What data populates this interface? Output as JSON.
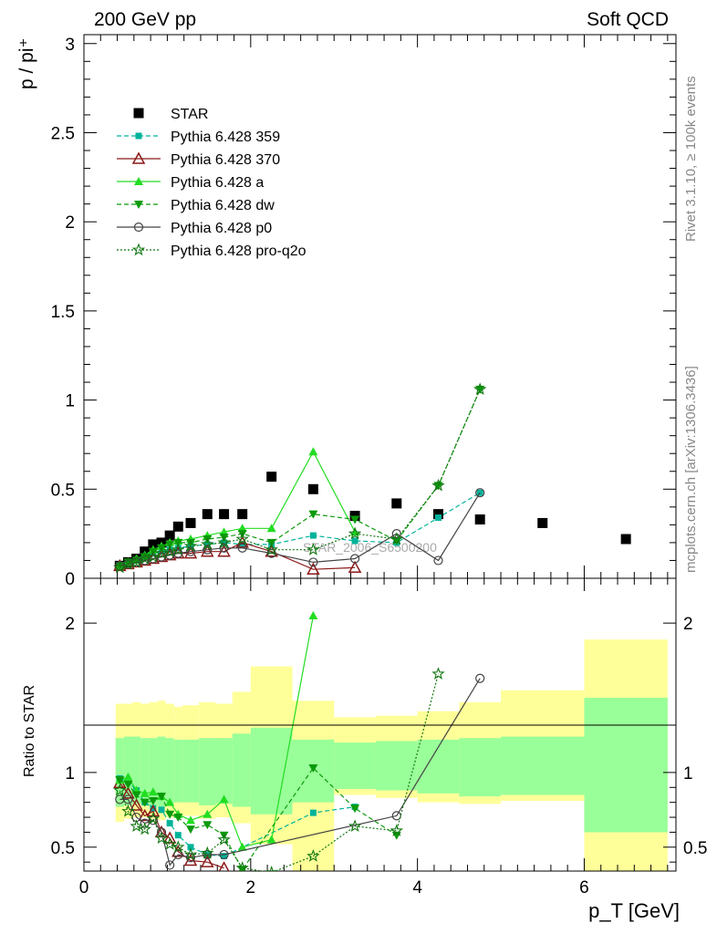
{
  "header": {
    "left": "200 GeV pp",
    "right": "Soft QCD",
    "side_top": "Rivet 3.1.10, ≥ 100k events",
    "side_bottom": "mcplots.cern.ch [arXiv:1306.3436]",
    "watermark": "STAR_2006_S6500200"
  },
  "chart_data": [
    {
      "type": "scatter",
      "panel": "main",
      "ylabel": "p / pi⁺",
      "xlim": [
        0,
        7.1
      ],
      "ylim": [
        0,
        3.05
      ],
      "yticks": [
        "0",
        "0.5",
        "1",
        "1.5",
        "2",
        "2.5",
        "3"
      ],
      "legend": {
        "placement": "top-left"
      },
      "series": [
        {
          "name": "STAR",
          "color": "#000000",
          "marker": "square",
          "line": "none",
          "x": [
            0.43,
            0.53,
            0.63,
            0.73,
            0.83,
            0.93,
            1.03,
            1.13,
            1.28,
            1.48,
            1.68,
            1.9,
            2.25,
            2.75,
            3.25,
            3.75,
            4.25,
            4.75,
            5.5,
            6.5
          ],
          "y": [
            0.07,
            0.09,
            0.11,
            0.15,
            0.19,
            0.2,
            0.24,
            0.29,
            0.31,
            0.36,
            0.36,
            0.36,
            0.57,
            0.5,
            0.35,
            0.42,
            0.36,
            0.33,
            0.31,
            0.22
          ]
        },
        {
          "name": "Pythia 6.428 359",
          "color": "#00b39a",
          "marker": "square-small",
          "line": "dashed",
          "x": [
            0.43,
            0.53,
            0.63,
            0.73,
            0.83,
            0.93,
            1.03,
            1.13,
            1.28,
            1.48,
            1.68,
            1.9,
            2.25,
            2.75,
            3.25,
            3.75,
            4.25,
            4.75
          ],
          "y": [
            0.07,
            0.09,
            0.1,
            0.12,
            0.14,
            0.15,
            0.16,
            0.17,
            0.18,
            0.19,
            0.2,
            0.19,
            0.19,
            0.24,
            0.21,
            0.2,
            0.34,
            0.48
          ]
        },
        {
          "name": "Pythia 6.428 370",
          "color": "#8b1a1a",
          "marker": "triangle-open",
          "line": "solid",
          "x": [
            0.43,
            0.53,
            0.63,
            0.73,
            0.83,
            0.93,
            1.03,
            1.13,
            1.28,
            1.48,
            1.68,
            1.9,
            2.25,
            2.75,
            3.25
          ],
          "y": [
            0.07,
            0.08,
            0.09,
            0.1,
            0.11,
            0.12,
            0.13,
            0.14,
            0.14,
            0.15,
            0.15,
            0.2,
            0.15,
            0.05,
            0.06
          ]
        },
        {
          "name": "Pythia 6.428 a",
          "color": "#22dd22",
          "marker": "triangle",
          "line": "solid",
          "x": [
            0.43,
            0.53,
            0.63,
            0.73,
            0.83,
            0.93,
            1.03,
            1.13,
            1.28,
            1.48,
            1.68,
            1.9,
            2.25,
            2.75,
            3.25
          ],
          "y": [
            0.07,
            0.09,
            0.11,
            0.13,
            0.16,
            0.18,
            0.2,
            0.21,
            0.22,
            0.24,
            0.26,
            0.28,
            0.28,
            0.71,
            0.26
          ]
        },
        {
          "name": "Pythia 6.428 dw",
          "color": "#0b9a0b",
          "marker": "triangle-down",
          "line": "dashed",
          "x": [
            0.43,
            0.53,
            0.63,
            0.73,
            0.83,
            0.93,
            1.03,
            1.13,
            1.28,
            1.48,
            1.68,
            1.9,
            2.25,
            2.75,
            3.25,
            3.75,
            4.25,
            4.75
          ],
          "y": [
            0.07,
            0.09,
            0.1,
            0.12,
            0.15,
            0.17,
            0.19,
            0.2,
            0.2,
            0.22,
            0.23,
            0.25,
            0.2,
            0.36,
            0.33,
            0.21,
            0.52,
            1.06
          ]
        },
        {
          "name": "Pythia 6.428 p0",
          "color": "#444444",
          "marker": "circle-open",
          "line": "solid",
          "x": [
            0.43,
            0.53,
            0.63,
            0.73,
            0.83,
            0.93,
            1.03,
            1.13,
            1.28,
            1.48,
            1.68,
            1.9,
            2.25,
            2.75,
            3.25,
            3.75,
            4.25,
            4.75
          ],
          "y": [
            0.07,
            0.08,
            0.09,
            0.1,
            0.11,
            0.12,
            0.13,
            0.14,
            0.15,
            0.16,
            0.17,
            0.17,
            0.14,
            0.09,
            0.11,
            0.25,
            0.1,
            0.48
          ]
        },
        {
          "name": "Pythia 6.428 pro-q2o",
          "color": "#117711",
          "marker": "star",
          "line": "dotted",
          "x": [
            0.43,
            0.53,
            0.63,
            0.73,
            0.83,
            0.93,
            1.03,
            1.13,
            1.28,
            1.48,
            1.68,
            1.9,
            2.25,
            2.75,
            3.25,
            3.75,
            4.25,
            4.75
          ],
          "y": [
            0.06,
            0.08,
            0.09,
            0.11,
            0.12,
            0.14,
            0.15,
            0.16,
            0.18,
            0.19,
            0.2,
            0.22,
            0.16,
            0.16,
            0.25,
            0.22,
            0.52,
            1.06
          ]
        }
      ]
    },
    {
      "type": "scatter",
      "panel": "ratio",
      "xlabel": "p_T [GeV]",
      "ylabel": "Ratio to STAR",
      "xlim": [
        0,
        7.1
      ],
      "ylim": [
        0.34,
        2.3
      ],
      "xticks": [
        "0",
        "2",
        "4",
        "6"
      ],
      "yticks": [
        "0.5",
        "1",
        "2"
      ],
      "bands": [
        {
          "x0": 0.38,
          "x1": 0.48,
          "yellow": [
            0.67,
            1.46
          ],
          "green": [
            0.77,
            1.23
          ]
        },
        {
          "x0": 0.48,
          "x1": 0.58,
          "yellow": [
            0.69,
            1.46
          ],
          "green": [
            0.78,
            1.24
          ]
        },
        {
          "x0": 0.58,
          "x1": 0.68,
          "yellow": [
            0.7,
            1.47
          ],
          "green": [
            0.79,
            1.24
          ]
        },
        {
          "x0": 0.68,
          "x1": 0.78,
          "yellow": [
            0.7,
            1.46
          ],
          "green": [
            0.79,
            1.23
          ]
        },
        {
          "x0": 0.78,
          "x1": 0.88,
          "yellow": [
            0.69,
            1.47
          ],
          "green": [
            0.78,
            1.23
          ]
        },
        {
          "x0": 0.88,
          "x1": 0.98,
          "yellow": [
            0.68,
            1.48
          ],
          "green": [
            0.77,
            1.24
          ]
        },
        {
          "x0": 0.98,
          "x1": 1.08,
          "yellow": [
            0.7,
            1.46
          ],
          "green": [
            0.79,
            1.23
          ]
        },
        {
          "x0": 1.08,
          "x1": 1.18,
          "yellow": [
            0.71,
            1.44
          ],
          "green": [
            0.8,
            1.22
          ]
        },
        {
          "x0": 1.18,
          "x1": 1.38,
          "yellow": [
            0.71,
            1.45
          ],
          "green": [
            0.8,
            1.22
          ]
        },
        {
          "x0": 1.38,
          "x1": 1.58,
          "yellow": [
            0.69,
            1.47
          ],
          "green": [
            0.78,
            1.23
          ]
        },
        {
          "x0": 1.58,
          "x1": 1.78,
          "yellow": [
            0.7,
            1.46
          ],
          "green": [
            0.79,
            1.23
          ]
        },
        {
          "x0": 1.78,
          "x1": 2.0,
          "yellow": [
            0.66,
            1.54
          ],
          "green": [
            0.77,
            1.26
          ]
        },
        {
          "x0": 2.0,
          "x1": 2.5,
          "yellow": [
            0.52,
            1.71
          ],
          "green": [
            0.72,
            1.3
          ]
        },
        {
          "x0": 2.5,
          "x1": 3.0,
          "yellow": [
            0.34,
            1.48
          ],
          "green": [
            0.8,
            1.22
          ]
        },
        {
          "x0": 3.0,
          "x1": 3.5,
          "yellow": [
            0.85,
            1.37
          ],
          "green": [
            0.89,
            1.2
          ]
        },
        {
          "x0": 3.5,
          "x1": 4.0,
          "yellow": [
            0.83,
            1.38
          ],
          "green": [
            0.88,
            1.21
          ]
        },
        {
          "x0": 4.0,
          "x1": 4.5,
          "yellow": [
            0.8,
            1.41
          ],
          "green": [
            0.86,
            1.22
          ]
        },
        {
          "x0": 4.5,
          "x1": 5.0,
          "yellow": [
            0.79,
            1.47
          ],
          "green": [
            0.84,
            1.23
          ]
        },
        {
          "x0": 5.0,
          "x1": 6.0,
          "yellow": [
            0.81,
            1.55
          ],
          "green": [
            0.85,
            1.24
          ]
        },
        {
          "x0": 6.0,
          "x1": 7.0,
          "yellow": [
            0.34,
            1.89
          ],
          "green": [
            0.6,
            1.5
          ]
        }
      ],
      "series": [
        {
          "name": "Pythia 6.428 359",
          "x": [
            0.43,
            0.53,
            0.63,
            0.73,
            0.83,
            0.93,
            1.03,
            1.13,
            1.28,
            1.48,
            1.68,
            2.75,
            3.25
          ],
          "y": [
            0.96,
            0.94,
            0.88,
            0.8,
            0.76,
            0.75,
            0.66,
            0.58,
            0.5,
            0.45,
            0.44,
            0.73,
            0.77
          ]
        },
        {
          "name": "Pythia 6.428 370",
          "x": [
            0.43,
            0.53,
            0.63,
            0.73,
            0.83,
            0.93,
            1.03,
            1.13,
            1.28,
            1.48,
            1.68
          ],
          "y": [
            0.93,
            0.86,
            0.78,
            0.71,
            0.74,
            0.6,
            0.56,
            0.47,
            0.41,
            0.4,
            0.36
          ]
        },
        {
          "name": "Pythia 6.428 a",
          "x": [
            0.43,
            0.53,
            0.63,
            0.73,
            0.83,
            0.93,
            1.03,
            1.13,
            1.28,
            1.48,
            1.68,
            1.9,
            2.25,
            2.75
          ],
          "y": [
            0.95,
            0.97,
            0.88,
            0.86,
            0.87,
            0.84,
            0.8,
            0.72,
            0.68,
            0.72,
            0.82,
            0.5,
            0.55,
            2.05
          ]
        },
        {
          "name": "Pythia 6.428 dw",
          "x": [
            0.43,
            0.53,
            0.63,
            0.73,
            0.83,
            0.93,
            1.03,
            1.13,
            1.28,
            1.48,
            1.68,
            1.9,
            2.75,
            3.25,
            3.75
          ],
          "y": [
            0.95,
            0.92,
            0.85,
            0.8,
            0.81,
            0.84,
            0.72,
            0.7,
            0.62,
            0.65,
            0.58,
            0.35,
            1.03,
            0.76,
            0.58
          ]
        },
        {
          "name": "Pythia 6.428 p0",
          "x": [
            0.43,
            0.53,
            0.63,
            0.73,
            0.83,
            0.93,
            1.03,
            1.13,
            1.28,
            1.48,
            1.68,
            3.75,
            4.75
          ],
          "y": [
            0.82,
            0.82,
            0.7,
            0.66,
            0.68,
            0.6,
            0.38,
            0.45,
            0.43,
            0.45,
            0.45,
            0.71,
            1.63
          ]
        },
        {
          "name": "Pythia 6.428 pro-q2o",
          "x": [
            0.43,
            0.53,
            0.63,
            0.73,
            0.83,
            0.93,
            1.03,
            1.13,
            1.28,
            1.48,
            1.68,
            1.9,
            2.25,
            2.75,
            3.25,
            3.75,
            4.25
          ],
          "y": [
            0.88,
            0.74,
            0.64,
            0.62,
            0.69,
            0.56,
            0.52,
            0.5,
            0.45,
            0.46,
            0.55,
            0.36,
            0.33,
            0.44,
            0.64,
            0.61,
            1.66
          ]
        }
      ]
    }
  ]
}
